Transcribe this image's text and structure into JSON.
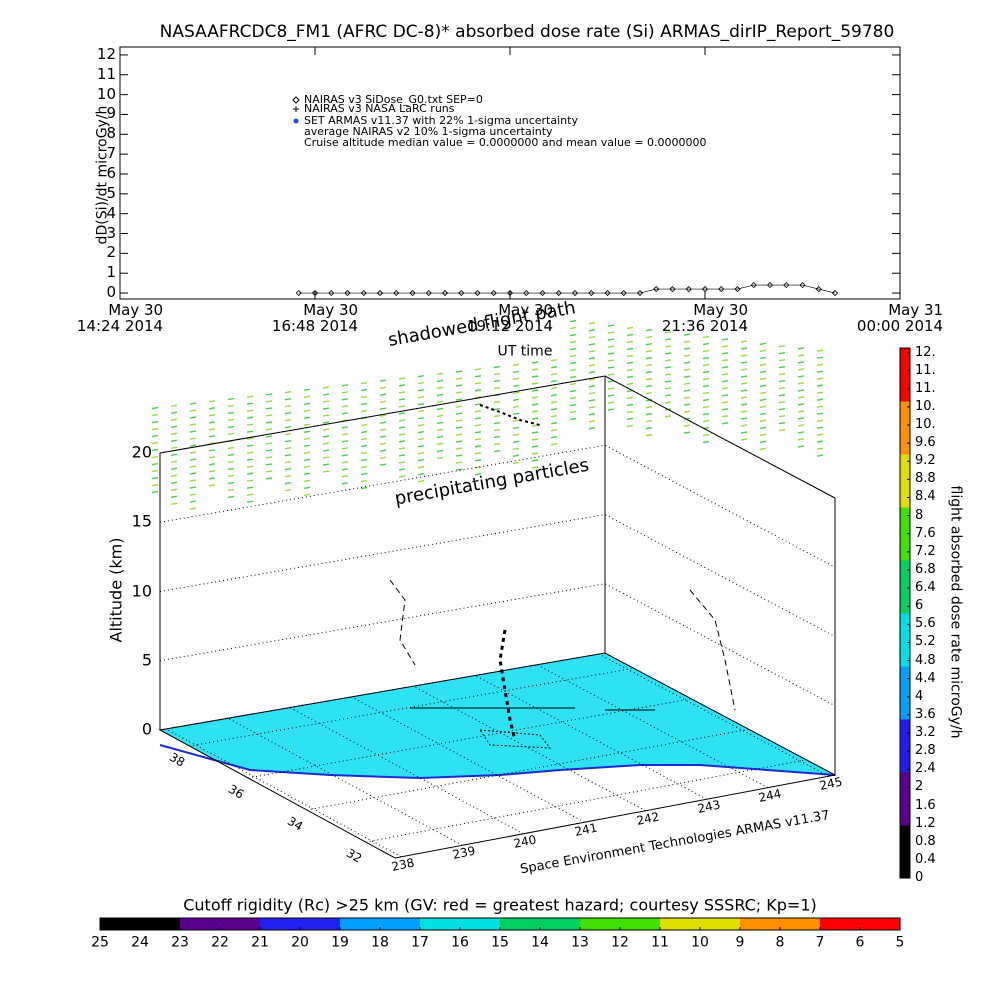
{
  "chart_data": [
    {
      "type": "scatter",
      "title": "NASAAFRCDC8_FM1 (AFRC DC-8)* absorbed dose rate (Si) ARMAS_dirIP_Report_59780",
      "ylabel": "dD(Si)/dt microGy/h",
      "xlabel": "UT time",
      "xlim": [
        14.4,
        24.0
      ],
      "xticks": [
        {
          "value": 14.4,
          "label": "May 30\n14:24 2014"
        },
        {
          "value": 16.8,
          "label": "May 30\n16:48 2014"
        },
        {
          "value": 19.2,
          "label": "May 30\n19:12 2014"
        },
        {
          "value": 21.6,
          "label": "May 30\n21:36 2014"
        },
        {
          "value": 24.0,
          "label": "May 31\n00:00 2014"
        }
      ],
      "ylim": [
        -0.3,
        12.4
      ],
      "yticks": [
        0,
        1,
        2,
        3,
        4,
        5,
        6,
        7,
        8,
        9,
        10,
        11,
        12
      ],
      "series": [
        {
          "name": "NAIRAS v3 SiDose_G0.txt SEP=0",
          "color": "#000000",
          "x": [
            16.6,
            16.8,
            17.0,
            17.2,
            17.4,
            17.6,
            17.8,
            18.0,
            18.2,
            18.4,
            18.6,
            18.8,
            19.0,
            19.2,
            19.4,
            19.6,
            19.8,
            20.0,
            20.2,
            20.4,
            20.6,
            20.8,
            21.0,
            21.2,
            21.4,
            21.6,
            21.8,
            22.0,
            22.2,
            22.4,
            22.6,
            22.8,
            23.0,
            23.2
          ],
          "values": [
            0,
            0,
            0,
            0,
            0,
            0,
            0,
            0,
            0,
            0,
            0,
            0,
            0,
            0,
            0,
            0,
            0,
            0,
            0,
            0,
            0,
            0,
            0.2,
            0.2,
            0.2,
            0.2,
            0.2,
            0.2,
            0.4,
            0.4,
            0.4,
            0.4,
            0.2,
            0
          ]
        }
      ],
      "annotations": [
        "NAIRAS v3 NASA LaRC runs",
        "SET ARMAS v11.37 with 22% 1-sigma uncertainty",
        "average NAIRAS v2 10% 1-sigma uncertainty",
        "Cruise altitude median value = 0.0000000 and mean value = 0.0000000"
      ]
    },
    {
      "type": "surface3d",
      "zlabel": "Altitude (km)",
      "zlim": [
        0,
        20
      ],
      "zticks": [
        0,
        5,
        10,
        15,
        20
      ],
      "latlim": [
        39,
        31
      ],
      "latticks": [
        38,
        36,
        34,
        32
      ],
      "lonlim": [
        237.9,
        245.1
      ],
      "lonticks": [
        238,
        239,
        240,
        241,
        242,
        243,
        244,
        245
      ],
      "annotations": [
        "shadowed flight path",
        "precipitating particles"
      ],
      "footer": "Space Environment Technologies ARMAS v11.37"
    },
    {
      "type": "colorbar",
      "label": "flight absorbed dose rate microGy/h",
      "ylim": [
        0,
        11.7
      ],
      "yticks": [
        0,
        0.4,
        0.8,
        1.2,
        1.6,
        2,
        2.4,
        2.8,
        3.2,
        3.6,
        4,
        4.4,
        4.8,
        5.2,
        5.6,
        6,
        6.4,
        6.8,
        7.2,
        7.6,
        8,
        8.4,
        8.8,
        9.2,
        9.6,
        {
          "value": 10,
          "label": "10."
        },
        {
          "value": 10.4,
          "label": "10."
        },
        {
          "value": 10.8,
          "label": "11."
        },
        {
          "value": 11.2,
          "label": "11."
        },
        {
          "value": 11.6,
          "label": "12."
        }
      ],
      "colors": [
        "#000000",
        "#5a0090",
        "#2020f0",
        "#00a0ff",
        "#00e0e0",
        "#00d060",
        "#40e000",
        "#e0e000",
        "#ff9000",
        "#ff0000"
      ]
    },
    {
      "type": "colorbar",
      "label": "Cutoff rigidity (Rc) >25 km (GV: red = greatest hazard; courtesy SSSRC; Kp=1)",
      "xlim": [
        25,
        5
      ],
      "xticks": [
        25,
        24,
        23,
        22,
        21,
        20,
        19,
        18,
        17,
        16,
        15,
        14,
        13,
        12,
        11,
        10,
        9,
        8,
        7,
        6,
        5
      ],
      "colors": [
        "#000000",
        "#5a0090",
        "#2020f0",
        "#00a0ff",
        "#00e0e0",
        "#00d060",
        "#40e000",
        "#e0e000",
        "#ff9000",
        "#ff0000"
      ]
    }
  ]
}
